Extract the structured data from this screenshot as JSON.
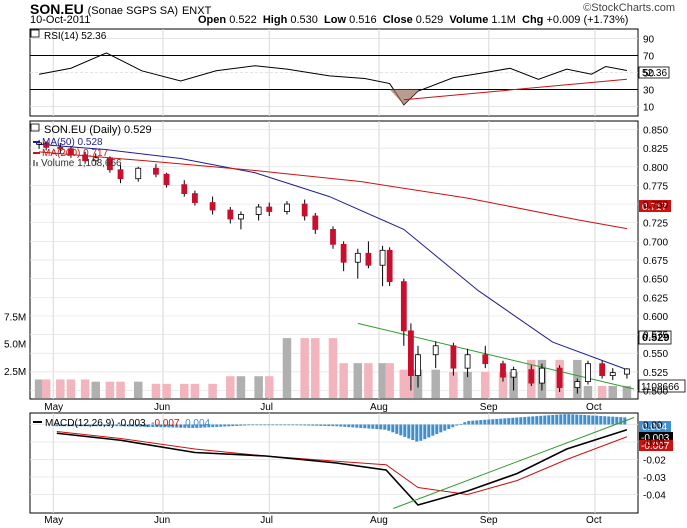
{
  "header": {
    "symbol": "SON.EU",
    "company": "(Sonae SGPS SA)",
    "exchange": "ENXT",
    "date": "10-Oct-2011",
    "watermark": "©StockCharts.com",
    "quote": {
      "open_label": "Open",
      "open": "0.522",
      "high_label": "High",
      "high": "0.530",
      "low_label": "Low",
      "low": "0.516",
      "close_label": "Close",
      "close": "0.529",
      "volume_label": "Volume",
      "volume": "1.1M",
      "chg_label": "Chg",
      "chg": "+0.009 (+1.73%)"
    }
  },
  "rsi_panel": {
    "label": "RSI(14) 52.36",
    "value_tag": "52.36",
    "ticks": [
      "90",
      "70",
      "50",
      "30",
      "10"
    ]
  },
  "price_panel": {
    "legend": {
      "title": "SON.EU (Daily) 0.529",
      "ma50": "MA(50) 0.528",
      "ma200": "MA(200) 0.717",
      "volume": "Volume 1,108,666"
    },
    "price_ticks": [
      "0.850",
      "0.825",
      "0.800",
      "0.775",
      "0.750",
      "0.725",
      "0.700",
      "0.675",
      "0.650",
      "0.625",
      "0.600",
      "0.575",
      "0.550",
      "0.525",
      "0.500"
    ],
    "volume_ticks": [
      "7.5M",
      "5.0M",
      "2.5M"
    ],
    "tags": {
      "close": "0.529",
      "ma200": "0.717",
      "volume": "1108666"
    }
  },
  "macd_panel": {
    "label": "MACD(12,26,9) -0.003, -0.007, 0.004",
    "label_parts": [
      "MACD(12,26,9)",
      "-0.003,",
      "-0.007,",
      "0.004"
    ],
    "ticks": [
      "0.00",
      "-0.01",
      "-0.02",
      "-0.03",
      "-0.04"
    ],
    "tags": [
      "0.004",
      "-0.003",
      "-0.007"
    ]
  },
  "month_labels": [
    "May",
    "Jun",
    "Jul",
    "Aug",
    "Sep",
    "Oct"
  ],
  "colors": {
    "up": "#ffffff",
    "down": "#c8102e",
    "ma50": "#1f1f8f",
    "ma200": "#cc1111",
    "trendline": "#2e9b2e",
    "volume_up": "#b0b0b0",
    "volume_down": "#f2b4bd",
    "histogram": "#3f8fd1",
    "macd": "#000000",
    "signal": "#cc1111"
  },
  "chart_data": [
    {
      "type": "line",
      "title": "RSI(14) 52.36",
      "ylim": [
        0,
        100
      ],
      "reference_lines": [
        30,
        70
      ],
      "x": [
        "Apr-27",
        "May-06",
        "May-16",
        "May-26",
        "Jun-06",
        "Jun-16",
        "Jun-27",
        "Jul-06",
        "Jul-18",
        "Jul-28",
        "Aug-04",
        "Aug-08",
        "Aug-12",
        "Aug-22",
        "Aug-31",
        "Sep-07",
        "Sep-15",
        "Sep-23",
        "Sep-30",
        "Oct-04",
        "Oct-10"
      ],
      "series": [
        {
          "name": "RSI(14)",
          "values": [
            48,
            55,
            73,
            52,
            40,
            52,
            58,
            54,
            46,
            43,
            37,
            12,
            28,
            44,
            50,
            55,
            42,
            54,
            48,
            57,
            52.36
          ]
        }
      ]
    },
    {
      "type": "line",
      "title": "SON.EU (Daily) 0.529",
      "subtype": "candlestick",
      "ylim": [
        0.49,
        0.86
      ],
      "columns": [
        "date",
        "open",
        "high",
        "low",
        "close"
      ],
      "candles": [
        [
          "Apr-27",
          0.83,
          0.836,
          0.824,
          0.832
        ],
        [
          "Apr-29",
          0.832,
          0.834,
          0.822,
          0.826
        ],
        [
          "May-03",
          0.826,
          0.832,
          0.818,
          0.824
        ],
        [
          "May-06",
          0.824,
          0.828,
          0.812,
          0.816
        ],
        [
          "May-10",
          0.816,
          0.82,
          0.804,
          0.808
        ],
        [
          "May-13",
          0.808,
          0.818,
          0.802,
          0.812
        ],
        [
          "May-17",
          0.812,
          0.814,
          0.792,
          0.796
        ],
        [
          "May-20",
          0.796,
          0.802,
          0.778,
          0.784
        ],
        [
          "May-25",
          0.784,
          0.8,
          0.78,
          0.798
        ],
        [
          "May-30",
          0.798,
          0.804,
          0.786,
          0.79
        ],
        [
          "Jun-02",
          0.79,
          0.792,
          0.772,
          0.776
        ],
        [
          "Jun-07",
          0.776,
          0.782,
          0.76,
          0.764
        ],
        [
          "Jun-10",
          0.764,
          0.768,
          0.748,
          0.752
        ],
        [
          "Jun-15",
          0.752,
          0.76,
          0.736,
          0.742
        ],
        [
          "Jun-20",
          0.742,
          0.746,
          0.724,
          0.73
        ],
        [
          "Jun-23",
          0.73,
          0.74,
          0.716,
          0.736
        ],
        [
          "Jun-28",
          0.736,
          0.75,
          0.728,
          0.746
        ],
        [
          "Jul-01",
          0.746,
          0.752,
          0.734,
          0.74
        ],
        [
          "Jul-06",
          0.74,
          0.754,
          0.736,
          0.75
        ],
        [
          "Jul-11",
          0.75,
          0.756,
          0.728,
          0.734
        ],
        [
          "Jul-14",
          0.734,
          0.738,
          0.71,
          0.716
        ],
        [
          "Jul-19",
          0.716,
          0.72,
          0.69,
          0.696
        ],
        [
          "Jul-22",
          0.696,
          0.7,
          0.66,
          0.672
        ],
        [
          "Jul-26",
          0.672,
          0.69,
          0.65,
          0.684
        ],
        [
          "Jul-29",
          0.684,
          0.7,
          0.664,
          0.668
        ],
        [
          "Aug-02",
          0.668,
          0.694,
          0.64,
          0.688
        ],
        [
          "Aug-04",
          0.688,
          0.692,
          0.64,
          0.646
        ],
        [
          "Aug-08",
          0.646,
          0.65,
          0.56,
          0.58
        ],
        [
          "Aug-10",
          0.58,
          0.59,
          0.5,
          0.52
        ],
        [
          "Aug-12",
          0.52,
          0.56,
          0.504,
          0.548
        ],
        [
          "Aug-17",
          0.548,
          0.566,
          0.53,
          0.56
        ],
        [
          "Aug-22",
          0.56,
          0.564,
          0.52,
          0.53
        ],
        [
          "Aug-26",
          0.53,
          0.556,
          0.518,
          0.548
        ],
        [
          "Aug-31",
          0.548,
          0.56,
          0.53,
          0.536
        ],
        [
          "Sep-05",
          0.536,
          0.54,
          0.512,
          0.518
        ],
        [
          "Sep-08",
          0.518,
          0.532,
          0.5,
          0.528
        ],
        [
          "Sep-13",
          0.528,
          0.534,
          0.506,
          0.51
        ],
        [
          "Sep-16",
          0.51,
          0.536,
          0.5,
          0.53
        ],
        [
          "Sep-21",
          0.53,
          0.534,
          0.498,
          0.504
        ],
        [
          "Sep-26",
          0.504,
          0.516,
          0.496,
          0.512
        ],
        [
          "Sep-29",
          0.512,
          0.54,
          0.508,
          0.536
        ],
        [
          "Oct-03",
          0.536,
          0.54,
          0.516,
          0.52
        ],
        [
          "Oct-06",
          0.52,
          0.53,
          0.514,
          0.524
        ],
        [
          "Oct-10",
          0.522,
          0.53,
          0.516,
          0.529
        ]
      ],
      "series": [
        {
          "name": "MA(50)",
          "x": [
            "Apr-27",
            "May-16",
            "Jun-06",
            "Jun-27",
            "Jul-18",
            "Aug-08",
            "Aug-29",
            "Sep-19",
            "Oct-10"
          ],
          "values": [
            0.83,
            0.823,
            0.811,
            0.792,
            0.76,
            0.716,
            0.634,
            0.565,
            0.528
          ]
        },
        {
          "name": "MA(200)",
          "x": [
            "Apr-27",
            "May-27",
            "Jun-27",
            "Jul-27",
            "Aug-26",
            "Sep-26",
            "Oct-10"
          ],
          "values": [
            0.82,
            0.808,
            0.795,
            0.78,
            0.758,
            0.729,
            0.717
          ]
        }
      ]
    },
    {
      "type": "bar",
      "title": "Volume 1,108,666",
      "ylim": [
        0,
        9000000
      ],
      "x": [
        "May",
        "Jun",
        "Jul",
        "Aug-a",
        "Aug-b",
        "Aug-c",
        "Sep-a",
        "Sep-b",
        "Sep-c",
        "Oct"
      ],
      "series": [
        {
          "name": "Volume",
          "values": [
            1700000,
            1500000,
            1300000,
            2000000,
            5500000,
            3200000,
            2600000,
            2400000,
            3500000,
            1108666
          ]
        }
      ]
    },
    {
      "type": "line",
      "title": "MACD(12,26,9) -0.003, -0.007, 0.004",
      "ylim": [
        -0.05,
        0.006
      ],
      "x": [
        "May-02",
        "May-20",
        "Jun-10",
        "Jun-30",
        "Jul-20",
        "Aug-03",
        "Aug-12",
        "Aug-26",
        "Sep-09",
        "Sep-23",
        "Oct-10"
      ],
      "series": [
        {
          "name": "MACD",
          "values": [
            -0.005,
            -0.009,
            -0.016,
            -0.018,
            -0.022,
            -0.026,
            -0.046,
            -0.038,
            -0.028,
            -0.014,
            -0.003
          ]
        },
        {
          "name": "Signal",
          "values": [
            -0.004,
            -0.008,
            -0.014,
            -0.018,
            -0.021,
            -0.023,
            -0.036,
            -0.04,
            -0.032,
            -0.02,
            -0.007
          ]
        },
        {
          "name": "Histogram",
          "values": [
            -0.001,
            -0.001,
            -0.002,
            0.0,
            -0.001,
            -0.003,
            -0.01,
            0.002,
            0.004,
            0.006,
            0.004
          ]
        }
      ]
    }
  ]
}
